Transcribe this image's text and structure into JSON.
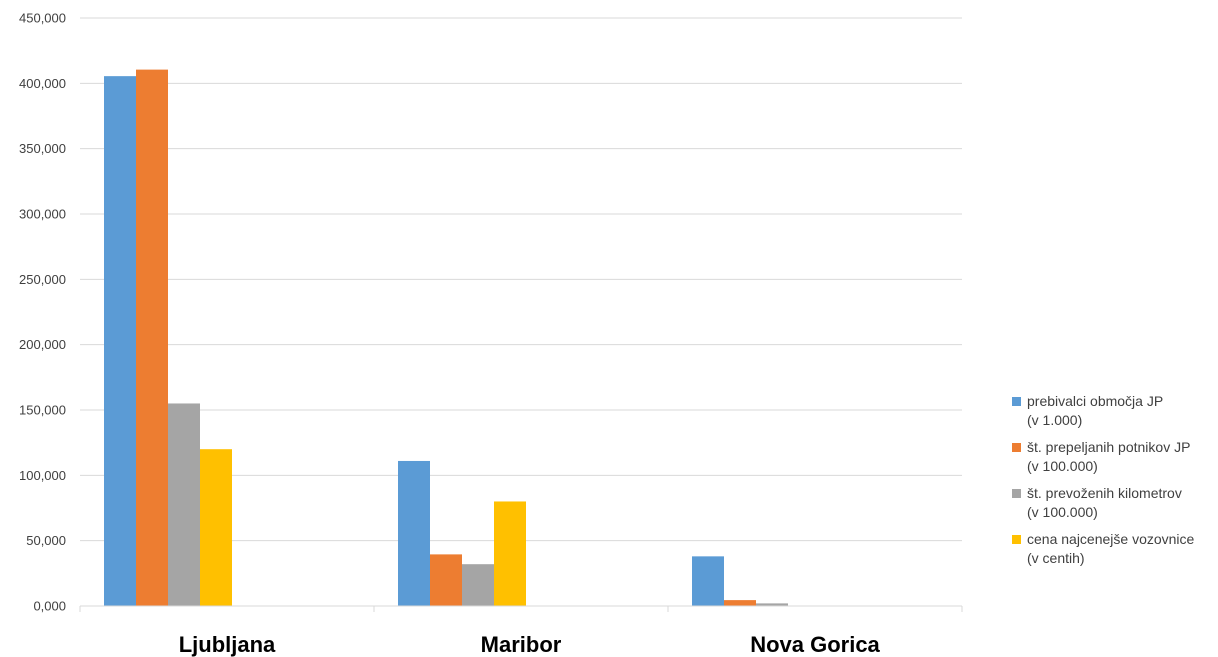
{
  "chart_data": {
    "type": "bar",
    "title": "",
    "xlabel": "",
    "ylabel": "",
    "categories": [
      "Ljubljana",
      "Maribor",
      "Nova Gorica"
    ],
    "ylim": [
      0,
      450000
    ],
    "y_ticks": [
      "0,000",
      "50,000",
      "100,000",
      "150,000",
      "200,000",
      "250,000",
      "300,000",
      "350,000",
      "400,000",
      "450,000"
    ],
    "grid": true,
    "legend_position": "right",
    "series": [
      {
        "name": "prebivalci območja JP (v 1.000)",
        "legend_lines": [
          "prebivalci območja JP",
          "(v 1.000)"
        ],
        "color": "#5B9BD5",
        "values": [
          405500,
          111000,
          38000
        ]
      },
      {
        "name": "št. prepeljanih potnikov JP (v 100.000)",
        "legend_lines": [
          "št. prepeljanih potnikov JP",
          "(v 100.000)"
        ],
        "color": "#ED7D31",
        "values": [
          410500,
          39500,
          4500
        ]
      },
      {
        "name": "št. prevoženih kilometrov (v 100.000)",
        "legend_lines": [
          "št. prevoženih kilometrov",
          "(v 100.000)"
        ],
        "color": "#A5A5A5",
        "values": [
          155000,
          32000,
          2000
        ]
      },
      {
        "name": "cena najcenejše vozovnice (v centih)",
        "legend_lines": [
          "cena najcenejše vozovnice",
          "(v centih)"
        ],
        "color": "#FFC000",
        "values": [
          120000,
          80000,
          0
        ]
      }
    ]
  }
}
